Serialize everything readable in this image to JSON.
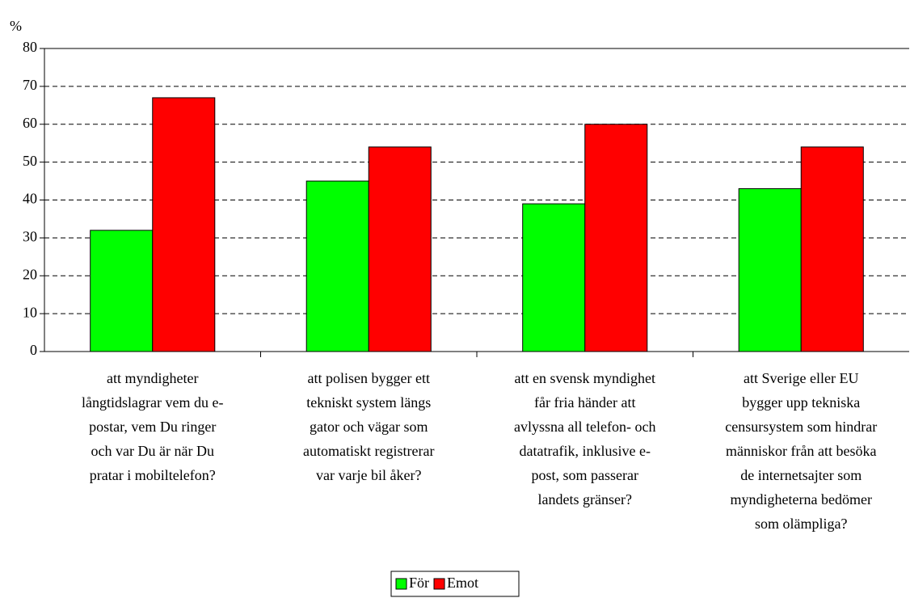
{
  "chart_data": {
    "type": "bar",
    "ylabel": "%",
    "categories": [
      [
        "att myndigheter",
        "långtidslagrar vem du e-",
        "postar, vem Du ringer",
        "och var Du är när Du",
        "pratar i mobiltelefon?"
      ],
      [
        "att polisen bygger ett",
        "tekniskt system längs",
        "gator och vägar som",
        "automatiskt registrerar",
        "var varje bil åker?"
      ],
      [
        "att en svensk myndighet",
        "får fria händer att",
        "avlyssna all telefon- och",
        "datatrafik, inklusive e-",
        "post, som passerar",
        "landets gränser?"
      ],
      [
        "att Sverige eller EU",
        "bygger upp tekniska",
        "censursystem som hindrar",
        "människor från att besöka",
        "de internetsajter som",
        "myndigheterna bedömer",
        "som olämpliga?"
      ]
    ],
    "series": [
      {
        "name": "För",
        "color": "#00ff00",
        "values": [
          32,
          45,
          39,
          43
        ]
      },
      {
        "name": "Emot",
        "color": "#ff0000",
        "values": [
          67,
          54,
          60,
          54
        ]
      }
    ],
    "ylim": [
      0,
      80
    ],
    "yticks": [
      0,
      10,
      20,
      30,
      40,
      50,
      60,
      70,
      80
    ],
    "grid": true,
    "legend": "bottom"
  }
}
